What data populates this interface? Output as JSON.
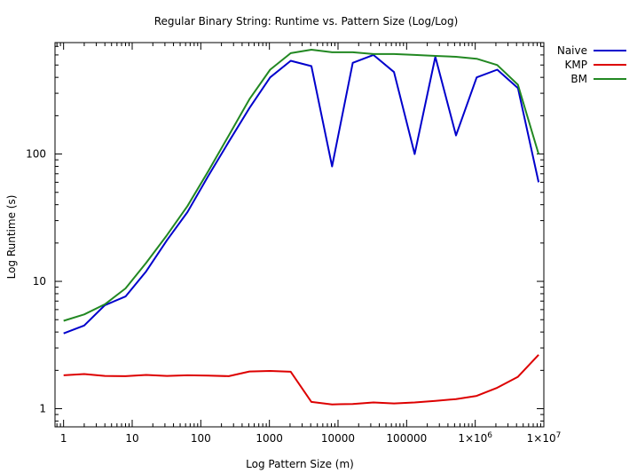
{
  "chart_data": {
    "type": "line",
    "title": "Regular Binary String: Runtime vs. Pattern Size (Log/Log)",
    "xlabel": "Log Pattern Size (m)",
    "ylabel": "Log Runtime (s)",
    "x_scale": "log",
    "y_scale": "log",
    "xlim": [
      0.75,
      10000000
    ],
    "ylim": [
      0.72,
      750
    ],
    "grid": false,
    "legend_position": "outside-right",
    "x_ticks": [
      {
        "value": 1,
        "label": "1"
      },
      {
        "value": 10,
        "label": "10"
      },
      {
        "value": 100,
        "label": "100"
      },
      {
        "value": 1000,
        "label": "1000"
      },
      {
        "value": 10000,
        "label": "10000"
      },
      {
        "value": 100000,
        "label": "100000"
      },
      {
        "value": 1000000,
        "label": "1×10",
        "exp": "6"
      },
      {
        "value": 10000000,
        "label": "1×10",
        "exp": "7"
      }
    ],
    "y_ticks": [
      {
        "value": 1,
        "label": "1"
      },
      {
        "value": 10,
        "label": "10"
      },
      {
        "value": 100,
        "label": "100"
      }
    ],
    "x": [
      1,
      2,
      4,
      8,
      16,
      32,
      64,
      128,
      256,
      512,
      1024,
      2048,
      4096,
      8192,
      16384,
      32768,
      65536,
      131072,
      262144,
      524288,
      1048576,
      2097152,
      4194304,
      8388608
    ],
    "series": [
      {
        "name": "Naive",
        "color": "#0000cc",
        "values": [
          3.9,
          4.5,
          6.5,
          7.6,
          12,
          21,
          35,
          67,
          125,
          230,
          400,
          540,
          490,
          80,
          520,
          600,
          440,
          100,
          580,
          140,
          400,
          460,
          330,
          60
        ]
      },
      {
        "name": "KMP",
        "color": "#dd0000",
        "values": [
          1.83,
          1.87,
          1.81,
          1.8,
          1.84,
          1.81,
          1.83,
          1.82,
          1.8,
          1.96,
          1.98,
          1.95,
          1.13,
          1.08,
          1.09,
          1.12,
          1.1,
          1.12,
          1.15,
          1.19,
          1.26,
          1.46,
          1.78,
          2.65
        ]
      },
      {
        "name": "BM",
        "color": "#228822",
        "values": [
          4.9,
          5.5,
          6.6,
          8.8,
          14,
          23,
          39,
          73,
          140,
          270,
          460,
          620,
          660,
          630,
          630,
          610,
          610,
          600,
          590,
          580,
          560,
          500,
          350,
          100
        ]
      }
    ]
  }
}
